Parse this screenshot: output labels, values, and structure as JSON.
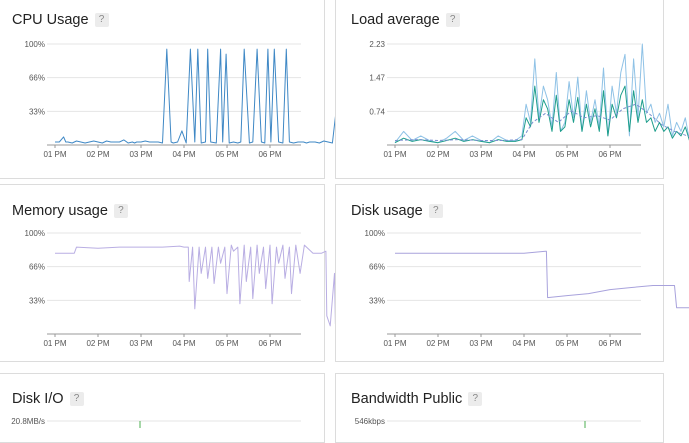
{
  "help_label": "?",
  "colors": {
    "cpu": "#3f88c5",
    "load_dark": "#1e9e8c",
    "load_light": "#8fc2e6",
    "load_dashed": "#7b8fd0",
    "memory": "#b9aee3",
    "disk": "#a8a2dc",
    "grid": "#e5e5e5",
    "axis": "#999999"
  },
  "panels": {
    "cpu": {
      "title": "CPU Usage"
    },
    "load": {
      "title": "Load average"
    },
    "memory": {
      "title": "Memory usage"
    },
    "disk": {
      "title": "Disk usage"
    },
    "diskio": {
      "title": "Disk I/O"
    },
    "bandwidth": {
      "title": "Bandwidth Public"
    }
  },
  "chart_data": [
    {
      "id": "cpu",
      "type": "line",
      "x_ticks": [
        "01 PM",
        "02 PM",
        "03 PM",
        "04 PM",
        "05 PM",
        "06 PM"
      ],
      "y_ticks": [
        "100%",
        "66%",
        "33%"
      ],
      "ylim": [
        0,
        100
      ],
      "grid": true,
      "series": [
        {
          "color": "cpu",
          "x": [
            0,
            0.1,
            0.2,
            0.25,
            0.3,
            0.4,
            0.5,
            0.6,
            0.7,
            0.8,
            0.9,
            1.0,
            1.1,
            1.2,
            1.3,
            1.4,
            1.5,
            1.6,
            1.7,
            1.8,
            1.85,
            1.9,
            2.0,
            2.1,
            2.2,
            2.3,
            2.4,
            2.5,
            2.6,
            2.7,
            2.75,
            2.85,
            2.95,
            3.05,
            3.15,
            3.25,
            3.32,
            3.4,
            3.5,
            3.55,
            3.62,
            3.75,
            3.85,
            3.9,
            3.98,
            4.05,
            4.15,
            4.25,
            4.32,
            4.4,
            4.52,
            4.6,
            4.7,
            4.8,
            4.88,
            4.95,
            5.02,
            5.1,
            5.2,
            5.3,
            5.38,
            5.45,
            5.55,
            5.65,
            5.72,
            5.78,
            5.85,
            5.92,
            6.05,
            6.15,
            6.25,
            6.35,
            6.45,
            6.55,
            6.6,
            6.65,
            6.75,
            6.85,
            7.0,
            7.1
          ],
          "y": [
            3,
            3,
            8,
            3,
            3,
            2,
            4,
            3,
            2,
            3,
            4,
            3,
            2,
            4,
            3,
            3,
            3,
            5,
            2,
            3,
            2,
            3,
            3,
            4,
            3,
            3,
            3,
            2,
            95,
            3,
            2,
            3,
            14,
            2,
            95,
            3,
            95,
            2,
            3,
            95,
            3,
            2,
            95,
            3,
            90,
            2,
            3,
            2,
            3,
            95,
            2,
            3,
            95,
            3,
            2,
            95,
            3,
            95,
            3,
            2,
            95,
            3,
            2,
            3,
            3,
            3,
            2,
            3,
            3,
            2,
            4,
            3,
            2,
            38,
            3,
            70,
            3,
            2,
            4,
            3
          ]
        }
      ]
    },
    {
      "id": "load",
      "type": "line",
      "x_ticks": [
        "01 PM",
        "02 PM",
        "03 PM",
        "04 PM",
        "05 PM",
        "06 PM"
      ],
      "y_ticks": [
        "2.23",
        "1.47",
        "0.74"
      ],
      "ylim": [
        0,
        2.23
      ],
      "grid": true,
      "series": [
        {
          "color": "load_light",
          "x": [
            0,
            0.2,
            0.4,
            0.6,
            0.8,
            1.0,
            1.2,
            1.4,
            1.6,
            1.8,
            2.0,
            2.2,
            2.4,
            2.6,
            2.8,
            2.95,
            3.05,
            3.15,
            3.25,
            3.35,
            3.45,
            3.55,
            3.65,
            3.75,
            3.85,
            3.95,
            4.05,
            4.15,
            4.25,
            4.35,
            4.45,
            4.55,
            4.65,
            4.75,
            4.85,
            4.95,
            5.05,
            5.15,
            5.25,
            5.35,
            5.45,
            5.55,
            5.65,
            5.75,
            5.85,
            5.95,
            6.05,
            6.15,
            6.25,
            6.35,
            6.45,
            6.55,
            6.65,
            6.75,
            6.85,
            6.95,
            7.05,
            7.15
          ],
          "y": [
            0.05,
            0.3,
            0.1,
            0.2,
            0.1,
            0.05,
            0.15,
            0.3,
            0.1,
            0.2,
            0.1,
            0.05,
            0.2,
            0.1,
            0.1,
            0.2,
            0.9,
            0.5,
            1.9,
            0.6,
            1.3,
            1.0,
            0.4,
            1.6,
            0.3,
            0.5,
            1.4,
            0.6,
            1.5,
            0.3,
            1.2,
            0.5,
            1.0,
            0.4,
            1.7,
            0.2,
            1.3,
            0.7,
            1.6,
            2.0,
            0.2,
            1.9,
            0.6,
            2.23,
            0.7,
            0.9,
            0.5,
            0.7,
            0.4,
            0.9,
            0.2,
            0.5,
            0.3,
            0.6,
            0.1,
            0.3,
            0.1,
            0.05
          ]
        },
        {
          "color": "load_dark",
          "x": [
            0,
            0.2,
            0.4,
            0.6,
            0.8,
            1.0,
            1.2,
            1.4,
            1.6,
            1.8,
            2.0,
            2.2,
            2.4,
            2.6,
            2.8,
            2.95,
            3.05,
            3.15,
            3.25,
            3.35,
            3.45,
            3.55,
            3.65,
            3.75,
            3.85,
            3.95,
            4.05,
            4.15,
            4.25,
            4.35,
            4.45,
            4.55,
            4.65,
            4.75,
            4.85,
            4.95,
            5.05,
            5.15,
            5.25,
            5.35,
            5.45,
            5.55,
            5.65,
            5.75,
            5.85,
            5.95,
            6.05,
            6.15,
            6.25,
            6.35,
            6.45,
            6.55,
            6.65,
            6.75,
            6.85,
            6.95,
            7.05,
            7.15
          ],
          "y": [
            0.05,
            0.15,
            0.08,
            0.12,
            0.08,
            0.05,
            0.1,
            0.15,
            0.08,
            0.12,
            0.08,
            0.05,
            0.12,
            0.08,
            0.08,
            0.12,
            0.6,
            0.4,
            1.3,
            0.5,
            1.0,
            0.8,
            0.3,
            1.1,
            0.3,
            0.4,
            1.0,
            0.5,
            1.05,
            0.3,
            0.9,
            0.4,
            0.8,
            0.3,
            1.2,
            0.2,
            0.9,
            0.6,
            1.1,
            1.3,
            0.3,
            1.2,
            0.5,
            1.0,
            0.5,
            0.6,
            0.3,
            0.5,
            0.3,
            0.4,
            0.15,
            0.3,
            0.2,
            0.4,
            0.1,
            0.2,
            0.1,
            0.05
          ]
        },
        {
          "color": "load_dashed",
          "dashed": true,
          "x": [
            0,
            0.5,
            1.0,
            1.5,
            2.0,
            2.5,
            2.95,
            3.2,
            3.5,
            3.8,
            4.1,
            4.4,
            4.7,
            5.0,
            5.3,
            5.6,
            5.9,
            6.2,
            6.5,
            6.8,
            7.15
          ],
          "y": [
            0.1,
            0.12,
            0.1,
            0.12,
            0.1,
            0.1,
            0.12,
            0.5,
            0.7,
            0.5,
            0.75,
            0.6,
            0.65,
            0.55,
            0.8,
            0.9,
            0.7,
            0.45,
            0.3,
            0.2,
            0.08
          ]
        }
      ]
    },
    {
      "id": "memory",
      "type": "line",
      "x_ticks": [
        "01 PM",
        "02 PM",
        "03 PM",
        "04 PM",
        "05 PM",
        "06 PM"
      ],
      "y_ticks": [
        "100%",
        "66%",
        "33%"
      ],
      "ylim": [
        0,
        100
      ],
      "grid": true,
      "series": [
        {
          "color": "memory",
          "x": [
            0,
            0.45,
            0.5,
            1.0,
            1.5,
            2.0,
            2.5,
            2.9,
            3.0,
            3.1,
            3.12,
            3.2,
            3.25,
            3.35,
            3.4,
            3.5,
            3.55,
            3.65,
            3.7,
            3.8,
            3.85,
            3.95,
            4.0,
            4.1,
            4.15,
            4.25,
            4.3,
            4.4,
            4.45,
            4.55,
            4.6,
            4.7,
            4.75,
            4.85,
            4.9,
            5.0,
            5.05,
            5.15,
            5.2,
            5.3,
            5.35,
            5.45,
            5.5,
            5.6,
            5.7,
            5.8,
            6.0,
            6.2,
            6.3,
            6.32,
            6.4,
            6.5,
            6.52,
            6.6,
            6.7,
            6.72,
            6.8,
            6.9,
            7.0,
            7.15
          ],
          "y": [
            80,
            80,
            86,
            85,
            86,
            86,
            86,
            87,
            86,
            86,
            52,
            86,
            25,
            86,
            60,
            86,
            55,
            86,
            50,
            86,
            70,
            86,
            40,
            88,
            82,
            86,
            30,
            88,
            52,
            86,
            35,
            88,
            60,
            86,
            45,
            88,
            30,
            86,
            70,
            88,
            55,
            86,
            40,
            88,
            60,
            88,
            80,
            80,
            82,
            18,
            8,
            60,
            10,
            62,
            8,
            62,
            60,
            60,
            60,
            60
          ]
        }
      ]
    },
    {
      "id": "disk",
      "type": "line",
      "x_ticks": [
        "01 PM",
        "02 PM",
        "03 PM",
        "04 PM",
        "05 PM",
        "06 PM"
      ],
      "y_ticks": [
        "100%",
        "66%",
        "33%"
      ],
      "ylim": [
        0,
        100
      ],
      "grid": true,
      "series": [
        {
          "color": "disk",
          "x": [
            0,
            1.0,
            2.0,
            2.5,
            3.0,
            3.5,
            3.52,
            3.55,
            4.0,
            4.5,
            5.0,
            5.5,
            6.0,
            6.2,
            6.5,
            6.55,
            6.8,
            7.15
          ],
          "y": [
            80,
            80,
            80,
            80,
            80,
            82,
            82,
            36,
            38,
            40,
            44,
            46,
            48,
            48,
            48,
            26,
            26,
            26
          ]
        }
      ]
    },
    {
      "id": "diskio",
      "type": "line",
      "x_ticks": [],
      "y_ticks": [
        "20.8MB/s"
      ],
      "grid": true,
      "series": []
    },
    {
      "id": "bandwidth",
      "type": "line",
      "x_ticks": [],
      "y_ticks": [
        "546kbps"
      ],
      "grid": true,
      "series": []
    }
  ]
}
